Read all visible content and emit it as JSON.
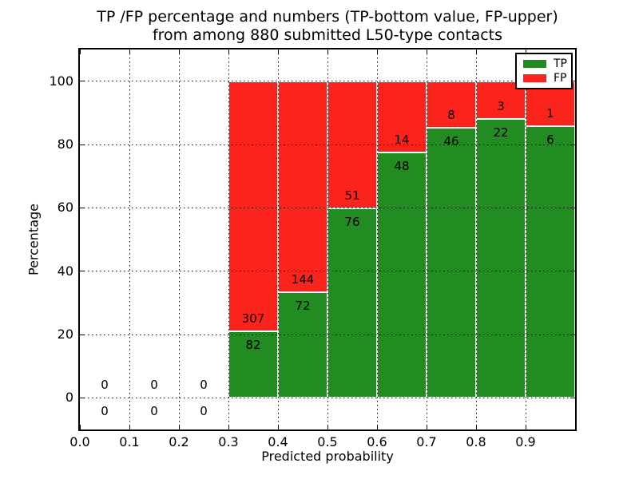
{
  "figure": {
    "background": "#ffffff"
  },
  "chart_data": {
    "type": "bar",
    "stacked": true,
    "title": "TP /FP percentage and numbers (TP-bottom value, FP-upper)",
    "subtitle": "from among 880 submitted L50-type contacts",
    "xlabel": "Predicted probability",
    "ylabel": "Percentage",
    "xlim": [
      0.0,
      1.0
    ],
    "ylim": [
      -10,
      110
    ],
    "xtick_values": [
      0.0,
      0.1,
      0.2,
      0.3,
      0.4,
      0.5,
      0.6,
      0.7,
      0.8,
      0.9
    ],
    "xtick_labels": [
      "0.0",
      "0.1",
      "0.2",
      "0.3",
      "0.4",
      "0.5",
      "0.6",
      "0.7",
      "0.8",
      "0.9"
    ],
    "ytick_values": [
      0,
      20,
      40,
      60,
      80,
      100
    ],
    "ytick_labels": [
      "0",
      "20",
      "40",
      "60",
      "80",
      "100"
    ],
    "grid": "dotted",
    "bar_total_percent": 100,
    "legend": {
      "position": "upper-right",
      "entries": [
        {
          "label": "TP",
          "color": "#228b22"
        },
        {
          "label": "FP",
          "color": "#fb241c"
        }
      ]
    },
    "bins": [
      {
        "range": [
          0.0,
          0.1
        ],
        "tp": 0,
        "fp": 0
      },
      {
        "range": [
          0.1,
          0.2
        ],
        "tp": 0,
        "fp": 0
      },
      {
        "range": [
          0.2,
          0.3
        ],
        "tp": 0,
        "fp": 0
      },
      {
        "range": [
          0.3,
          0.4
        ],
        "tp": 82,
        "fp": 307
      },
      {
        "range": [
          0.4,
          0.5
        ],
        "tp": 72,
        "fp": 144
      },
      {
        "range": [
          0.5,
          0.6
        ],
        "tp": 76,
        "fp": 51
      },
      {
        "range": [
          0.6,
          0.7
        ],
        "tp": 48,
        "fp": 14
      },
      {
        "range": [
          0.7,
          0.8
        ],
        "tp": 46,
        "fp": 8
      },
      {
        "range": [
          0.8,
          0.9
        ],
        "tp": 22,
        "fp": 3
      },
      {
        "range": [
          0.9,
          1.0
        ],
        "tp": 6,
        "fp": 1
      }
    ]
  }
}
